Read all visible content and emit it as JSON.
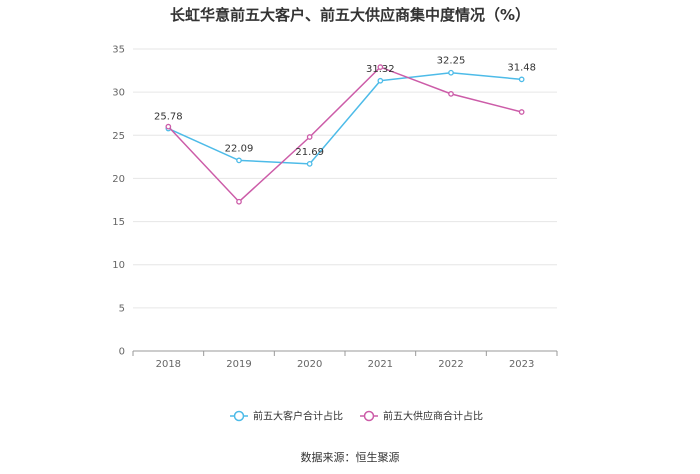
{
  "chart_data": {
    "type": "line",
    "title": "长虹华意前五大客户、前五大供应商集中度情况（%）",
    "categories": [
      "2018",
      "2019",
      "2020",
      "2021",
      "2022",
      "2023"
    ],
    "series": [
      {
        "name": "前五大客户合计占比",
        "color": "#4dbbe8",
        "values": [
          25.78,
          22.09,
          21.69,
          31.32,
          32.25,
          31.48
        ],
        "labels": [
          "25.78",
          "22.09",
          "21.69",
          "31.32",
          "32.25",
          "31.48"
        ]
      },
      {
        "name": "前五大供应商合计占比",
        "color": "#cc5ca8",
        "values": [
          26.0,
          17.3,
          24.8,
          32.9,
          29.8,
          27.7
        ]
      }
    ],
    "yticks": [
      "0",
      "5",
      "10",
      "15",
      "20",
      "25",
      "30",
      "35"
    ],
    "ylim": [
      0,
      35
    ],
    "grid": true,
    "legend": "bottom-center"
  },
  "source": "数据来源：恒生聚源"
}
